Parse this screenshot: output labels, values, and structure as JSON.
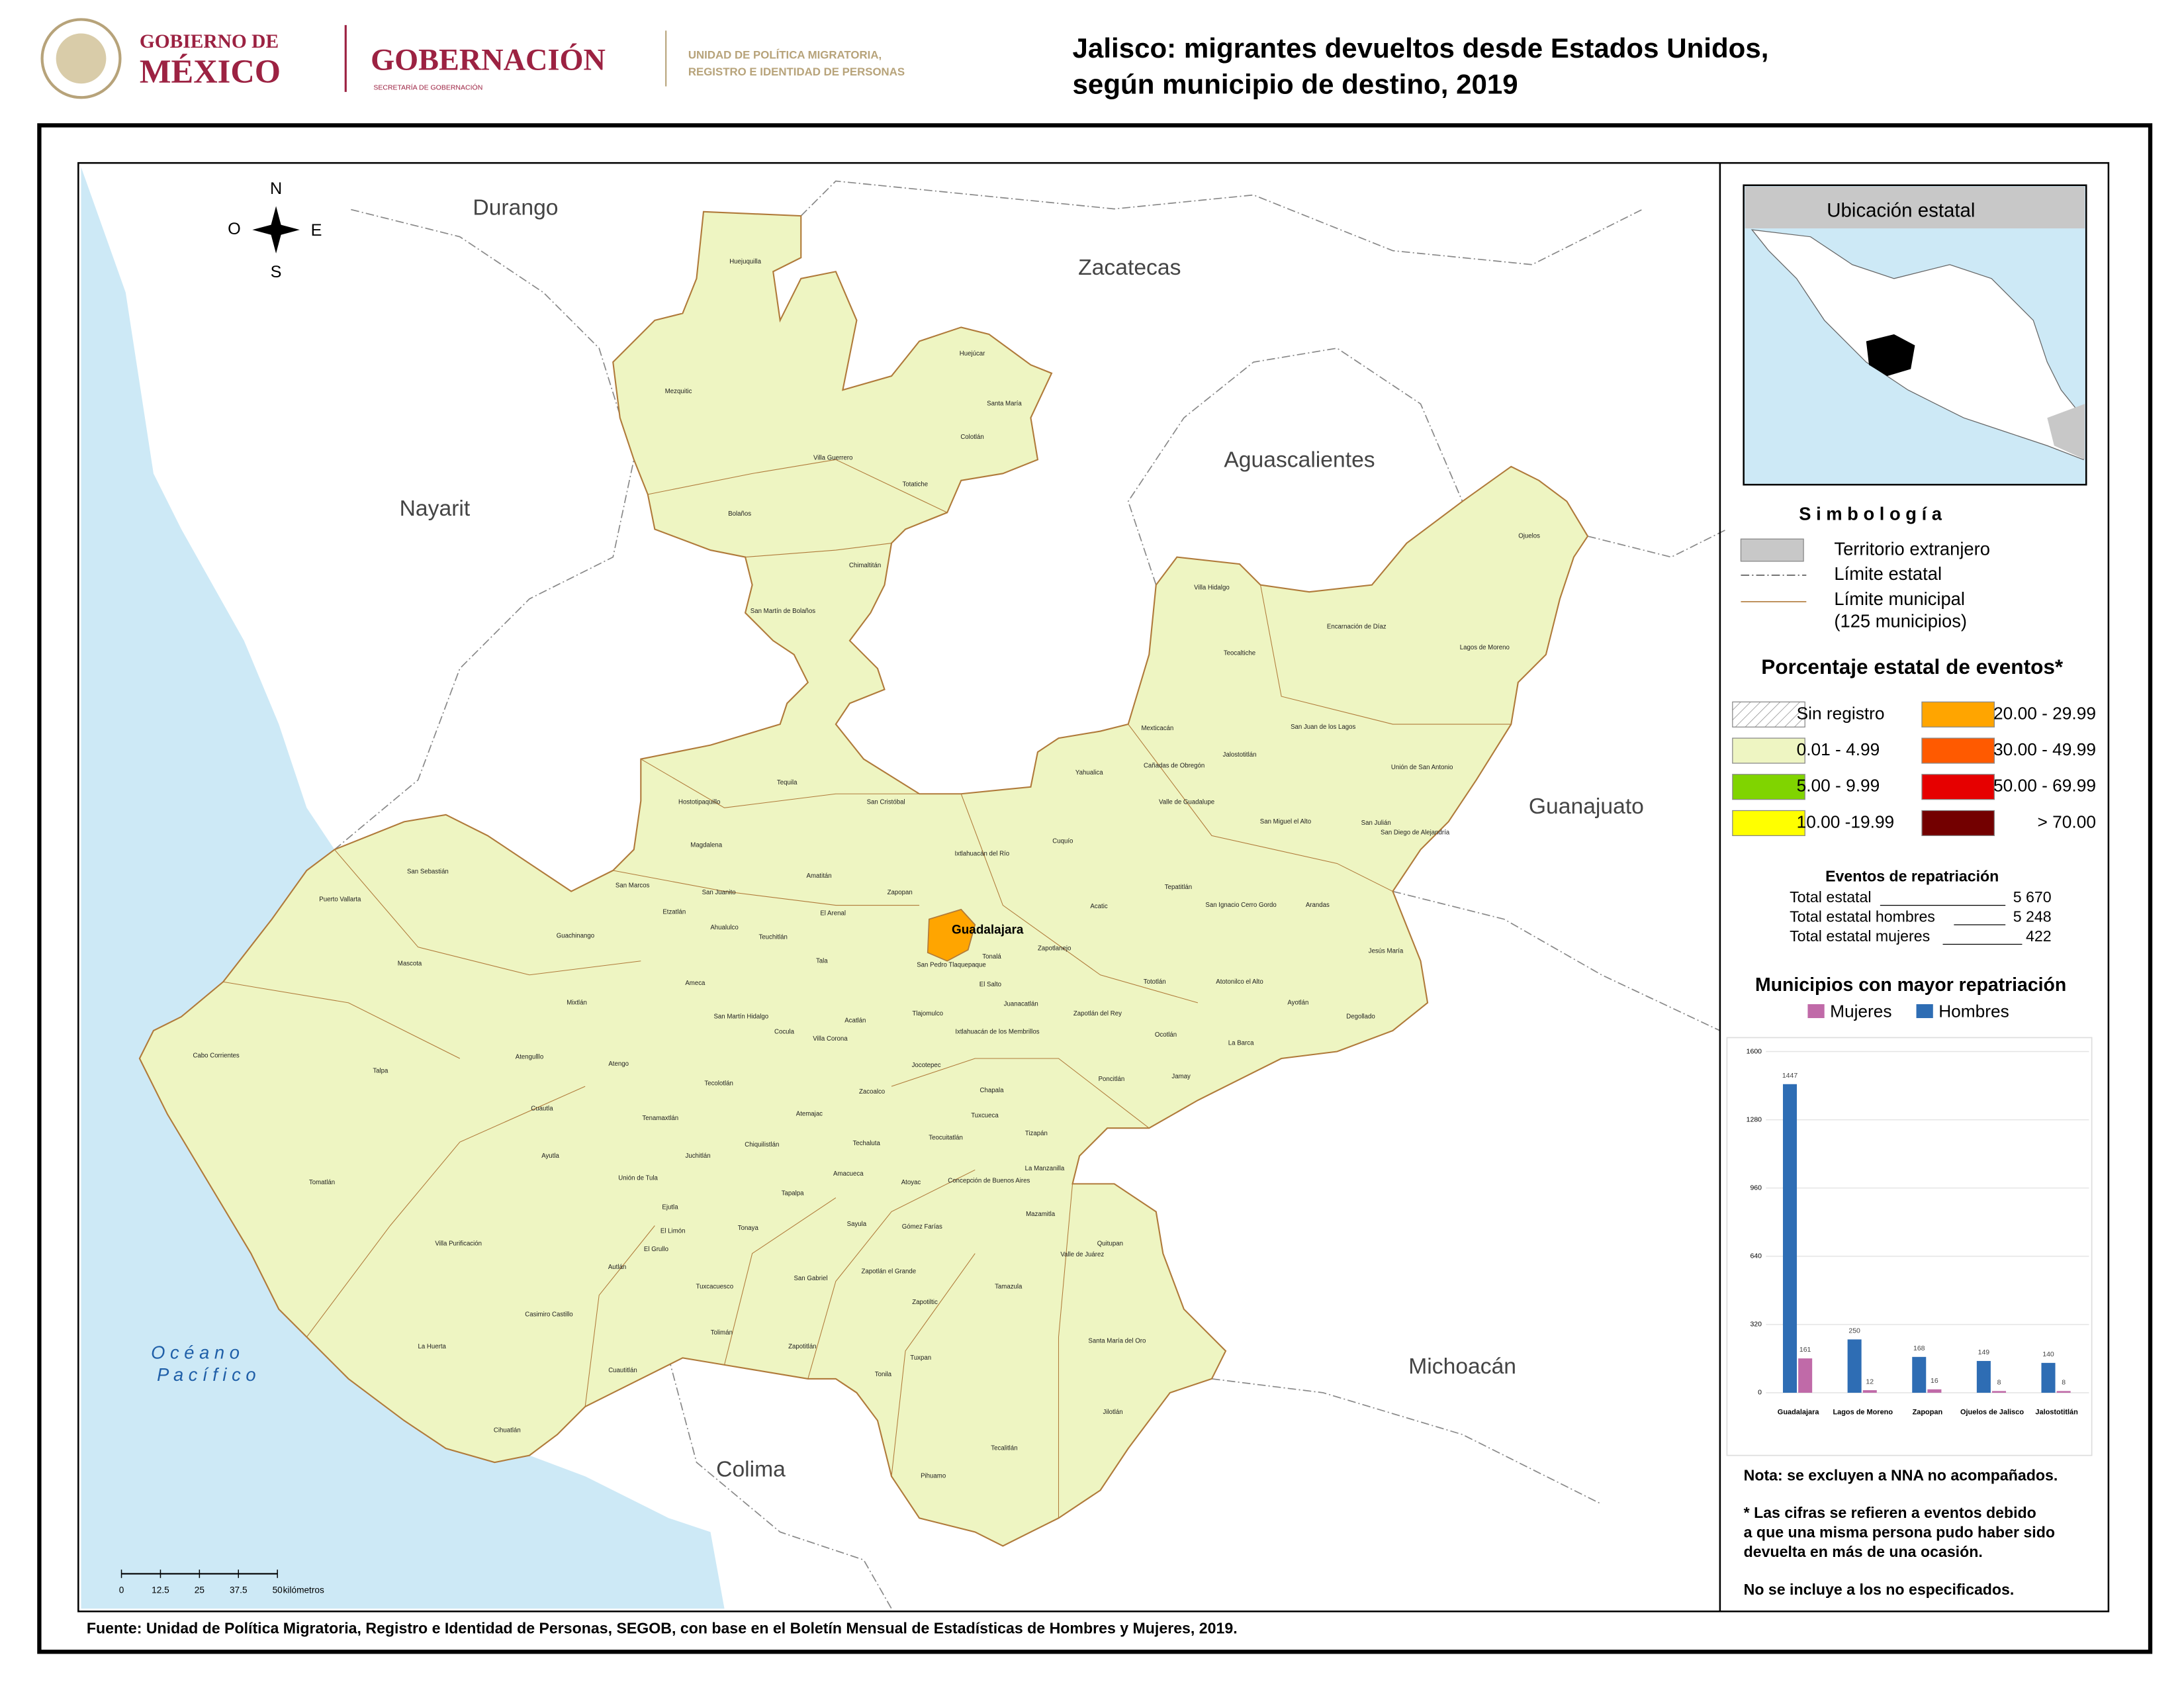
{
  "header": {
    "gov_line1": "GOBIERNO DE",
    "gov_line2": "MÉXICO",
    "ministry": "GOBERNACIÓN",
    "ministry_sub": "SECRETARÍA DE GOBERNACIÓN",
    "unit_line1": "UNIDAD DE POLÍTICA MIGRATORIA,",
    "unit_line2": "REGISTRO E IDENTIDAD DE PERSONAS",
    "title_line1": "Jalisco: migrantes devueltos desde Estados Unidos,",
    "title_line2": "según municipio de destino, 2019"
  },
  "map": {
    "compass": [
      "N",
      "O",
      "E",
      "S"
    ],
    "states": [
      "Durango",
      "Zacatecas",
      "Aguascalientes",
      "Nayarit",
      "Guanajuato",
      "Michoacán",
      "Colima"
    ],
    "ocean": [
      "O c é a n o",
      "P a c í f i c o"
    ],
    "highlighted": "Guadalajara",
    "municipalities": [
      "Huejuquilla",
      "Mezquitic",
      "Huejúcar",
      "Santa María",
      "Colotlán",
      "Villa Guerrero",
      "Totatiche",
      "Bolaños",
      "Chimaltitán",
      "San Martín de Bolaños",
      "Villa Hidalgo",
      "Encarnación de Díaz",
      "Ojuelos",
      "Lagos de Moreno",
      "Teocaltiche",
      "San Juan de los Lagos",
      "Mexticacán",
      "Jalostotitlán",
      "Unión de San Antonio",
      "Cañadas de Obregón",
      "Yahualica",
      "Valle de Guadalupe",
      "Tequila",
      "Hostotipaquillo",
      "San Cristóbal",
      "Cuquío",
      "San Miguel el Alto",
      "San Julián",
      "San Diego de Alejandría",
      "Ixtlahuacán del Río",
      "Magdalena",
      "San Sebastián",
      "San Marcos",
      "San Juanito",
      "Amatitán",
      "Zapopan",
      "Tepatitlán",
      "Puerto Vallarta",
      "Etzatlán",
      "El Arenal",
      "Acatic",
      "San Ignacio Cerro Gordo",
      "Arandas",
      "Guachinango",
      "Ahualulco",
      "Teuchitlán",
      "Zapotlanejo",
      "Tonalá",
      "Jesús María",
      "Mascota",
      "Tala",
      "San Pedro Tlaquepaque",
      "El Salto",
      "Ameca",
      "Tototlán",
      "Atotonilco el Alto",
      "Mixtlán",
      "Juanacatlán",
      "Ayotlán",
      "San Martín Hidalgo",
      "Acatlán",
      "Tlajomulco",
      "Zapotlán del Rey",
      "Degollado",
      "Cocula",
      "Villa Corona",
      "Ixtlahuacán de los Membrillos",
      "Ocotlán",
      "La Barca",
      "Cabo Corrientes",
      "Atengulllo",
      "Atengo",
      "Jocotepec",
      "Jamay",
      "Talpa",
      "Poncitlán",
      "Tecolotlán",
      "Chapala",
      "Zacoalco",
      "Cuautla",
      "Atemajac",
      "Tuxcueca",
      "Tenamaxtlán",
      "Ayutla",
      "Juchitlán",
      "Teocuitatlán",
      "Tizapán",
      "Techaluta",
      "Chiquilistlán",
      "Unión de Tula",
      "La Manzanilla",
      "Amacueca",
      "Atoyac",
      "Concepción de Buenos Aires",
      "Tomatlán",
      "Ejutla",
      "Mazamitla",
      "Tapalpa",
      "Sayula",
      "Gómez Farías",
      "El Limón",
      "Tonaya",
      "El Grullo",
      "Villa Purificación",
      "Quitupan",
      "Valle de Juárez",
      "Autlán",
      "San Gabriel",
      "Zapotlán el Grande",
      "Tuxcacuesco",
      "Tamazula",
      "Zapotiltic",
      "Casimiro Castillo",
      "Tolimán",
      "La Huerta",
      "Santa María del Oro",
      "Zapotitlán",
      "Tuxpan",
      "Cuautitlán",
      "Tonila",
      "Jilotlán",
      "Cihuatlán",
      "Tecalitlán",
      "Pihuamo"
    ],
    "scale": {
      "ticks": [
        0,
        12.5,
        25,
        37.5,
        50
      ],
      "unit": "kilómetros"
    }
  },
  "inset": {
    "title": "Ubicación estatal"
  },
  "legend": {
    "title": "S i m b o l o g í a",
    "items": [
      "Territorio extranjero",
      "Límite estatal",
      "Límite municipal",
      "(125 municipios)"
    ],
    "classes_title": "Porcentaje estatal de eventos*",
    "classes": [
      {
        "label": "Sin registro",
        "color": "#ffffff"
      },
      {
        "label": "0.01  - 4.99",
        "color": "#eef5c2"
      },
      {
        "label": "5.00  - 9.99",
        "color": "#80d400"
      },
      {
        "label": "10.00 -19.99",
        "color": "#ffff00"
      },
      {
        "label": "20.00 - 29.99",
        "color": "#ffa500"
      },
      {
        "label": "30.00 - 49.99",
        "color": "#ff5a00"
      },
      {
        "label": "50.00 - 69.99",
        "color": "#e60000"
      },
      {
        "label": "> 70.00",
        "color": "#730000"
      }
    ]
  },
  "totals": {
    "title": "Eventos de repatriación",
    "rows": [
      {
        "label": "Total estatal",
        "value": "5 670"
      },
      {
        "label": "Total estatal hombres",
        "value": "5 248"
      },
      {
        "label": "Total estatal mujeres",
        "value": "422"
      }
    ]
  },
  "chart_data": {
    "type": "bar",
    "title": "Municipios con mayor repatriación",
    "categories": [
      "Guadalajara",
      "Lagos de Moreno",
      "Zapopan",
      "Ojuelos de Jalisco",
      "Jalostotitlán"
    ],
    "series": [
      {
        "name": "Mujeres",
        "color": "#c06aa8",
        "values": [
          161,
          12,
          16,
          8,
          8
        ]
      },
      {
        "name": "Hombres",
        "color": "#2e6db4",
        "values": [
          1447,
          250,
          168,
          149,
          140
        ]
      }
    ],
    "ylim": [
      0,
      1600
    ],
    "yticks": [
      0,
      320,
      640,
      960,
      1280,
      1600
    ],
    "grid": true
  },
  "notes": [
    "Nota: se excluyen a NNA no acompañados.",
    "* Las cifras se refieren a eventos debido",
    "a que una misma persona pudo haber sido",
    "devuelta en más de una ocasión.",
    "No se incluye a los no especificados."
  ],
  "source": "Fuente: Unidad de Política Migratoria, Registro e Identidad de Personas, SEGOB, con base en el Boletín Mensual de Estadísticas de Hombres y Mujeres, 2019."
}
